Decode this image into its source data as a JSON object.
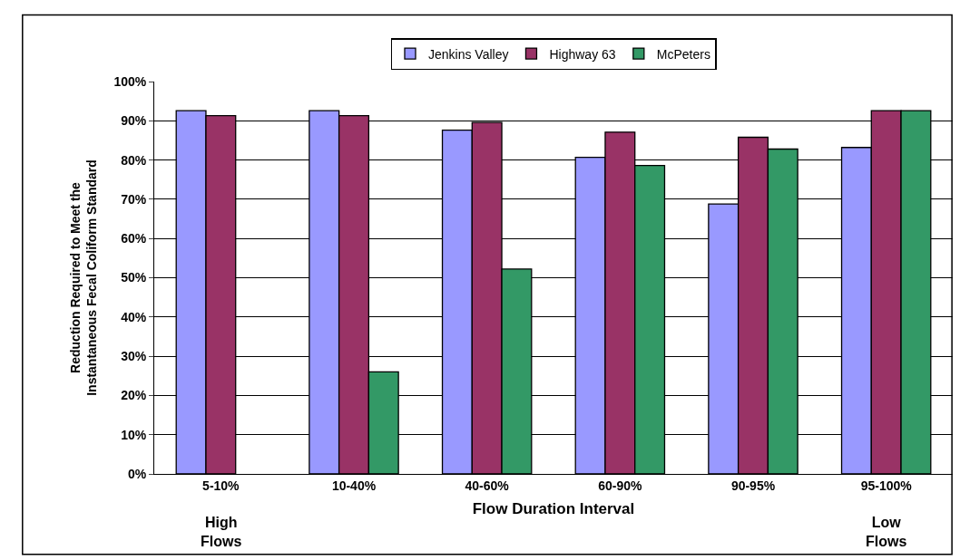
{
  "chart_data": {
    "type": "bar",
    "ylabel": "Reduction Required to Meet the\nInstantaneous Fecal Coliform Standard",
    "xlabel": "Flow Duration Interval",
    "categories": [
      "5-10%",
      "10-40%",
      "40-60%",
      "60-90%",
      "90-95%",
      "95-100%"
    ],
    "series": [
      {
        "name": "Jenkins Valley",
        "color": "#9999ff",
        "values": [
          92.6,
          92.6,
          87.6,
          80.7,
          68.8,
          83.2
        ]
      },
      {
        "name": "Highway 63",
        "color": "#993366",
        "values": [
          91.3,
          91.3,
          89.6,
          87.1,
          85.8,
          92.6
        ]
      },
      {
        "name": "McPeters",
        "color": "#339966",
        "values": [
          null,
          26.0,
          52.2,
          78.6,
          82.8,
          92.6
        ]
      }
    ],
    "ylim": [
      0,
      100
    ],
    "yticks": [
      {
        "value": 0,
        "label": "0%"
      },
      {
        "value": 10,
        "label": "10%"
      },
      {
        "value": 20,
        "label": "20%"
      },
      {
        "value": 30,
        "label": "30%"
      },
      {
        "value": 40,
        "label": "40%"
      },
      {
        "value": 50,
        "label": "50%"
      },
      {
        "value": 60,
        "label": "60%"
      },
      {
        "value": 70,
        "label": "70%"
      },
      {
        "value": 80,
        "label": "80%"
      },
      {
        "value": 90,
        "label": "90%"
      },
      {
        "value": 100,
        "label": "100%"
      }
    ],
    "grid": "y",
    "legend": "top",
    "annotations": [
      "High\nFlows",
      "Low\nFlows"
    ]
  }
}
